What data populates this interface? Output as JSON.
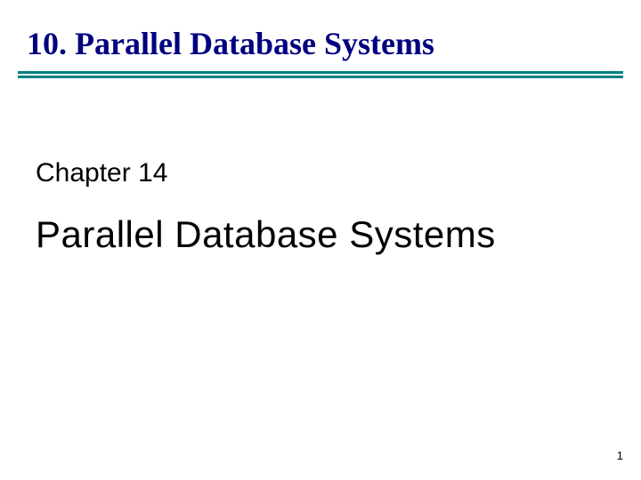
{
  "slide": {
    "section_number": "10.",
    "section_title": "Parallel Database Systems",
    "header_full": "10.  Parallel Database Systems",
    "chapter_label": "Chapter 14",
    "main_title": "Parallel Database Systems",
    "page_number": "1"
  },
  "style": {
    "background_color": "#ffffff",
    "header_color": "#000080",
    "header_fontsize": 36,
    "header_fontfamily": "Times New Roman",
    "header_fontweight": "bold",
    "divider_color": "#008080",
    "divider_line_height": 3,
    "divider_gap": 2,
    "content_color": "#000000",
    "chapter_fontsize": 30,
    "chapter_fontfamily": "Arial",
    "title_fontsize": 42,
    "title_fontfamily": "Arial",
    "pagenum_fontsize": 13,
    "slide_width": 720,
    "slide_height": 540
  }
}
